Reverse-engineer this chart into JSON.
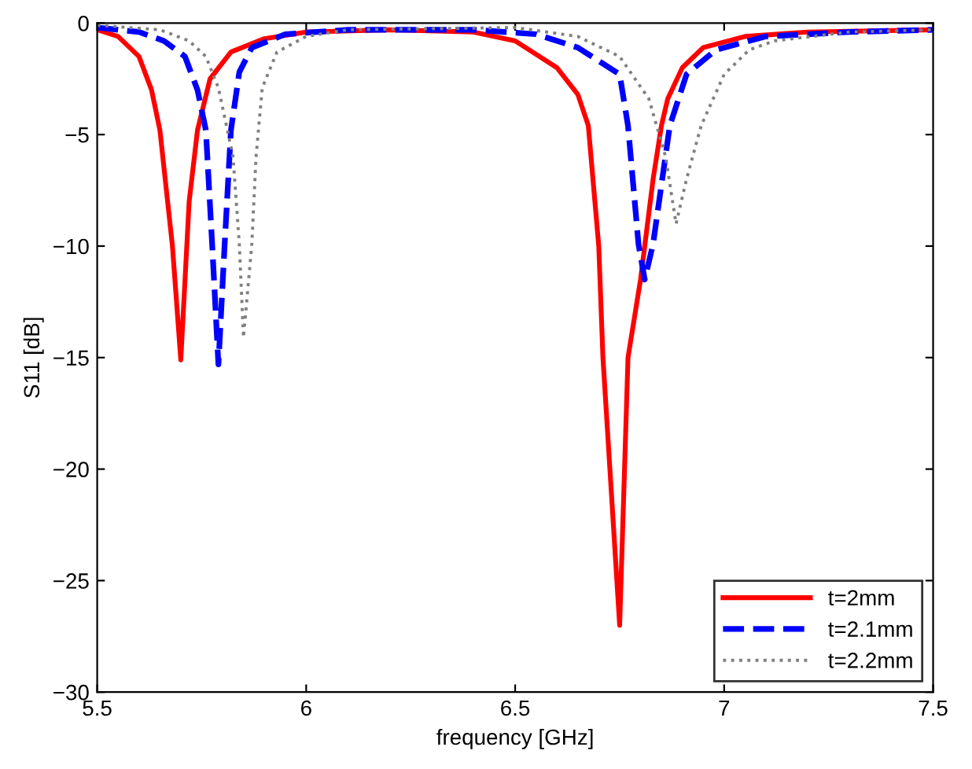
{
  "chart_data": {
    "type": "line",
    "xlabel": "frequency [GHz]",
    "ylabel": "S11 [dB]",
    "xlim": [
      5.5,
      7.5
    ],
    "ylim": [
      -30,
      0
    ],
    "xticks": [
      5.5,
      6,
      6.5,
      7,
      7.5
    ],
    "yticks": [
      {
        "value": -30,
        "label": "−30"
      },
      {
        "value": -25,
        "label": "−25"
      },
      {
        "value": -20,
        "label": "−20"
      },
      {
        "value": -15,
        "label": "−15"
      },
      {
        "value": -10,
        "label": "−10"
      },
      {
        "value": -5,
        "label": "−5"
      },
      0
    ],
    "grid": false,
    "legend": "bottom right",
    "marker": "none",
    "series": [
      {
        "name": "t=2mm",
        "color": "#ff0000",
        "line_style": "solid",
        "x": [
          5.5,
          5.55,
          5.6,
          5.63,
          5.65,
          5.68,
          5.7,
          5.72,
          5.74,
          5.77,
          5.82,
          5.9,
          6.0,
          6.2,
          6.4,
          6.5,
          6.6,
          6.65,
          6.675,
          6.7,
          6.71,
          6.73,
          6.75,
          6.77,
          6.8,
          6.83,
          6.85,
          6.865,
          6.9,
          6.95,
          7.05,
          7.2,
          7.5
        ],
        "values": [
          -0.3,
          -0.6,
          -1.5,
          -3,
          -4.8,
          -10,
          -15.1,
          -8,
          -4.8,
          -2.5,
          -1.3,
          -0.7,
          -0.4,
          -0.3,
          -0.4,
          -0.8,
          -2,
          -3.2,
          -4.6,
          -10,
          -15,
          -21,
          -27,
          -15,
          -11.5,
          -7,
          -4.6,
          -3.4,
          -2,
          -1.1,
          -0.6,
          -0.4,
          -0.3
        ]
      },
      {
        "name": "t=2.1mm",
        "color": "#0000ff",
        "line_style": "dashed",
        "x": [
          5.5,
          5.6,
          5.66,
          5.71,
          5.74,
          5.76,
          5.775,
          5.79,
          5.805,
          5.82,
          5.84,
          5.87,
          5.95,
          6.1,
          6.4,
          6.55,
          6.65,
          6.75,
          6.77,
          6.795,
          6.81,
          6.83,
          6.87,
          6.91,
          6.98,
          7.1,
          7.3,
          7.5
        ],
        "values": [
          -0.2,
          -0.4,
          -0.8,
          -1.5,
          -3,
          -4.8,
          -9.9,
          -15.3,
          -9.9,
          -4.8,
          -2.2,
          -1.1,
          -0.5,
          -0.3,
          -0.3,
          -0.5,
          -1.1,
          -2.3,
          -4.6,
          -9.9,
          -11.5,
          -9.9,
          -4.6,
          -2.3,
          -1.2,
          -0.6,
          -0.4,
          -0.3
        ]
      },
      {
        "name": "t=2.2mm",
        "color": "#808080",
        "line_style": "dotted",
        "x": [
          5.5,
          5.65,
          5.72,
          5.76,
          5.79,
          5.825,
          5.84,
          5.85,
          5.87,
          5.88,
          5.895,
          5.93,
          6.0,
          6.1,
          6.5,
          6.65,
          6.75,
          6.82,
          6.86,
          6.885,
          6.91,
          6.945,
          7.0,
          7.06,
          7.12,
          7.3,
          7.5
        ],
        "values": [
          -0.1,
          -0.3,
          -0.8,
          -1.5,
          -2.9,
          -6,
          -9.9,
          -14.1,
          -9.9,
          -6,
          -2.9,
          -1.3,
          -0.6,
          -0.3,
          -0.2,
          -0.6,
          -1.5,
          -3.4,
          -6,
          -9,
          -7,
          -4.6,
          -2.3,
          -1.2,
          -0.8,
          -0.4,
          -0.3
        ]
      }
    ]
  }
}
